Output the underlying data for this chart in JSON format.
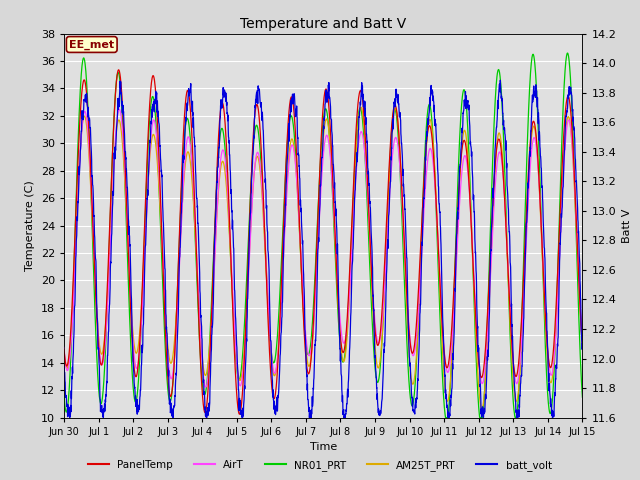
{
  "title": "Temperature and Batt V",
  "xlabel": "Time",
  "ylabel_left": "Temperature (C)",
  "ylabel_right": "Batt V",
  "annotation": "EE_met",
  "ylim_left": [
    10,
    38
  ],
  "ylim_right": [
    11.6,
    14.2
  ],
  "x_tick_labels": [
    "Jun 30",
    "Jul 1",
    "Jul 2",
    "Jul 3",
    "Jul 4",
    "Jul 5",
    "Jul 6",
    "Jul 7",
    "Jul 8",
    "Jul 9",
    "Jul 10",
    "Jul 11",
    "Jul 12",
    "Jul 13",
    "Jul 14",
    "Jul 15"
  ],
  "legend_entries": [
    "PanelTemp",
    "AirT",
    "NR01_PRT",
    "AM25T_PRT",
    "batt_volt"
  ],
  "legend_colors": [
    "#dd0000",
    "#ff44ff",
    "#00cc00",
    "#ddaa00",
    "#0000dd"
  ],
  "line_colors": {
    "PanelTemp": "#dd0000",
    "AirT": "#ff44ff",
    "NR01_PRT": "#00cc00",
    "AM25T_PRT": "#ddaa00",
    "batt_volt": "#0000dd"
  },
  "fig_bg": "#d8d8d8",
  "plot_bg": "#e0e0e0",
  "grid_color": "#ffffff",
  "annotation_box_color": "#ffffcc",
  "annotation_border_color": "#880000",
  "annotation_text_color": "#880000",
  "n_days": 15,
  "pts_per_day": 144,
  "seed": 12
}
